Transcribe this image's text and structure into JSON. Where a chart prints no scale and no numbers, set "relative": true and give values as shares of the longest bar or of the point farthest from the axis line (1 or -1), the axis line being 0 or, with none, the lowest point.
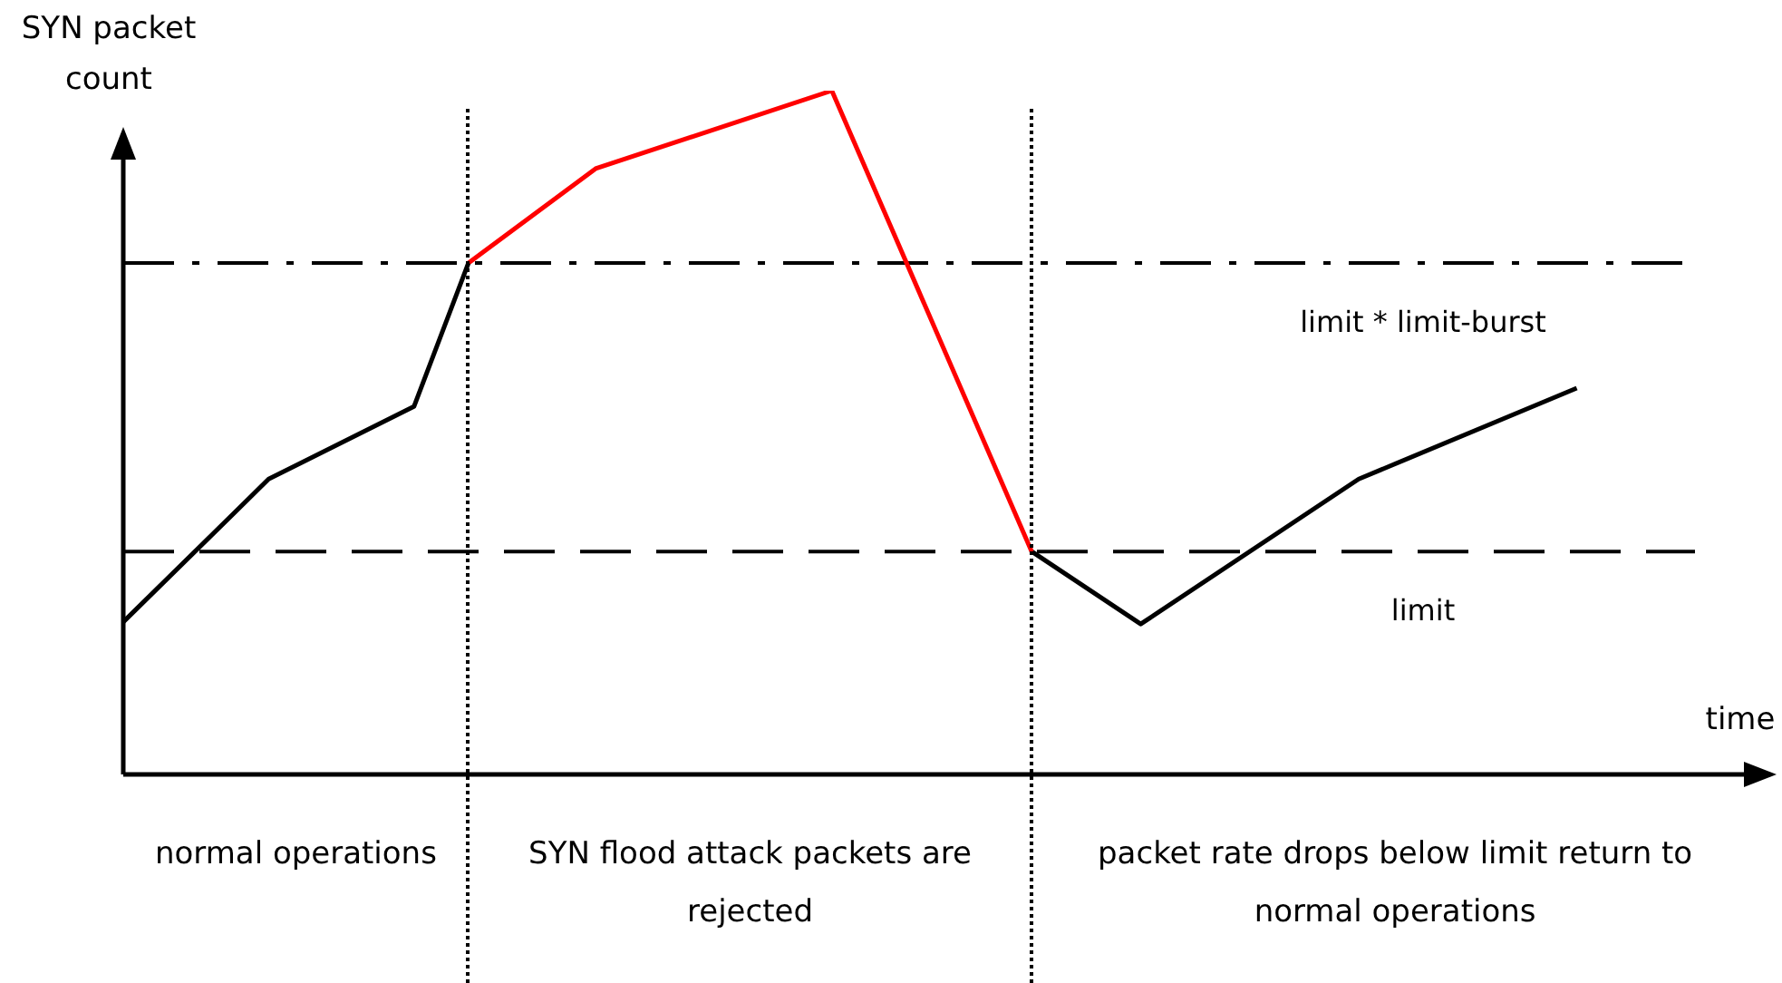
{
  "chart_data": {
    "type": "line",
    "relative": true,
    "ylabel": "SYN packet count",
    "xlabel": "time",
    "marker": "none",
    "categories": [
      null,
      null,
      null,
      null,
      null,
      null,
      null,
      null,
      null,
      null,
      null,
      null,
      null,
      null,
      null,
      null,
      null,
      null,
      null,
      null,
      null,
      null,
      null,
      null,
      null,
      null,
      null,
      null,
      null,
      null,
      null,
      null,
      null,
      null,
      null,
      null,
      null,
      null,
      null,
      null,
      null,
      null,
      null,
      null,
      null,
      null,
      null,
      null,
      null,
      null,
      null,
      null,
      null,
      null,
      null,
      null,
      null,
      null,
      null,
      null,
      null,
      null,
      null,
      null,
      null,
      null,
      null,
      null,
      null,
      null,
      null,
      null,
      null,
      null,
      null,
      null,
      null,
      null,
      null,
      null,
      null,
      null,
      null,
      null,
      null,
      null,
      null,
      null,
      null,
      null,
      null
    ],
    "series": [
      {
        "color": "#000000",
        "values": [
          0.223,
          null,
          null,
          null,
          null,
          null,
          null,
          null,
          0.432,
          null,
          null,
          null,
          null,
          null,
          null,
          null,
          0.538,
          null,
          null,
          0.748,
          null,
          null,
          null,
          null,
          null,
          null,
          null,
          null,
          null,
          null,
          null,
          null,
          null,
          null,
          null,
          null,
          null,
          null,
          null,
          null,
          null,
          null,
          null,
          null,
          null,
          null,
          null,
          null,
          null,
          null,
          null,
          null,
          null,
          null,
          null,
          null,
          null,
          null,
          null,
          null,
          null,
          null,
          null,
          null,
          null,
          null,
          null,
          null,
          null,
          null,
          null,
          null,
          null,
          null,
          null,
          null,
          null,
          null,
          null,
          null,
          null,
          null,
          null,
          null,
          null,
          null,
          null,
          null,
          null,
          null,
          null
        ]
      },
      {
        "color": "#ff0000",
        "values": [
          null,
          null,
          null,
          null,
          null,
          null,
          null,
          null,
          null,
          null,
          null,
          null,
          null,
          null,
          null,
          null,
          null,
          null,
          null,
          0.748,
          null,
          null,
          null,
          null,
          null,
          null,
          0.886,
          null,
          null,
          null,
          null,
          null,
          null,
          null,
          null,
          null,
          null,
          null,
          null,
          1,
          null,
          null,
          null,
          null,
          null,
          null,
          null,
          null,
          null,
          null,
          0.326,
          null,
          null,
          null,
          null,
          null,
          null,
          null,
          null,
          null,
          null,
          null,
          null,
          null,
          null,
          null,
          null,
          null,
          null,
          null,
          null,
          null,
          null,
          null,
          null,
          null,
          null,
          null,
          null,
          null,
          null,
          null,
          null,
          null,
          null,
          null,
          null,
          null,
          null,
          null,
          null
        ]
      },
      {
        "color": "#000000",
        "values": [
          null,
          null,
          null,
          null,
          null,
          null,
          null,
          null,
          null,
          null,
          null,
          null,
          null,
          null,
          null,
          null,
          null,
          null,
          null,
          null,
          null,
          null,
          null,
          null,
          null,
          null,
          null,
          null,
          null,
          null,
          null,
          null,
          null,
          null,
          null,
          null,
          null,
          null,
          null,
          null,
          null,
          null,
          null,
          null,
          null,
          null,
          null,
          null,
          null,
          null,
          0.326,
          null,
          null,
          null,
          null,
          null,
          0.22,
          null,
          null,
          null,
          null,
          null,
          null,
          null,
          null,
          null,
          null,
          null,
          0.432,
          null,
          null,
          null,
          null,
          null,
          null,
          null,
          null,
          null,
          null,
          null,
          0.565,
          null,
          null,
          null,
          null,
          null,
          null,
          null,
          null,
          null,
          null
        ]
      }
    ],
    "ref_lines": [
      {
        "axis": "y",
        "value": 0.748,
        "label": "limit * limit-burst",
        "line_style": "dashdot",
        "color": "#000000"
      },
      {
        "axis": "y",
        "value": 0.326,
        "label": "limit",
        "line_style": "dashed",
        "color": "#000000"
      }
    ],
    "annotations": [
      "normal operations",
      "SYN flood attack packets are rejected",
      "packet rate drops below limit return to normal operations"
    ]
  }
}
